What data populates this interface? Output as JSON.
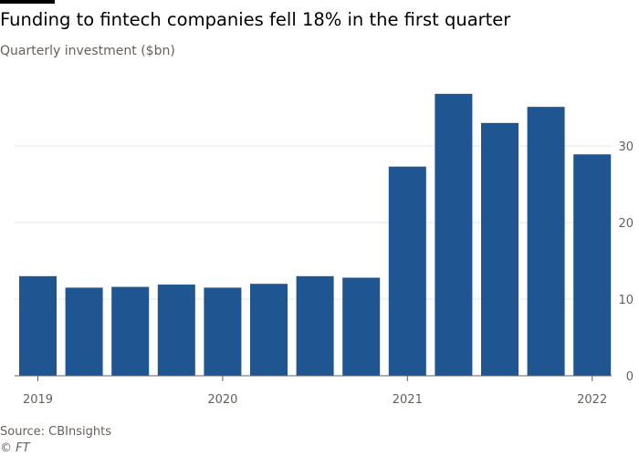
{
  "chart_data": {
    "type": "bar",
    "title": "Funding to fintech companies fell 18% in the first quarter",
    "subtitle": "Quarterly investment ($bn)",
    "xlabel": "",
    "ylabel": "Quarterly investment ($bn)",
    "ylim": [
      0,
      38
    ],
    "yticks": [
      0,
      10,
      20,
      30
    ],
    "grid": true,
    "y_axis_side": "right",
    "categories": [
      "2019 Q1",
      "2019 Q2",
      "2019 Q3",
      "2019 Q4",
      "2020 Q1",
      "2020 Q2",
      "2020 Q3",
      "2020 Q4",
      "2021 Q1",
      "2021 Q2",
      "2021 Q3",
      "2021 Q4",
      "2022 Q1"
    ],
    "x_tick_labels": [
      {
        "label": "2019",
        "category_index": 0
      },
      {
        "label": "2020",
        "category_index": 4
      },
      {
        "label": "2021",
        "category_index": 8
      },
      {
        "label": "2022",
        "category_index": 12
      }
    ],
    "series": [
      {
        "name": "Quarterly investment ($bn)",
        "color": "#1f5590",
        "values": [
          13.0,
          11.5,
          11.6,
          11.9,
          11.5,
          12.0,
          13.0,
          12.8,
          27.3,
          36.8,
          33.0,
          35.1,
          28.9
        ]
      }
    ],
    "source": "Source: CBInsights",
    "credit": "© FT"
  }
}
